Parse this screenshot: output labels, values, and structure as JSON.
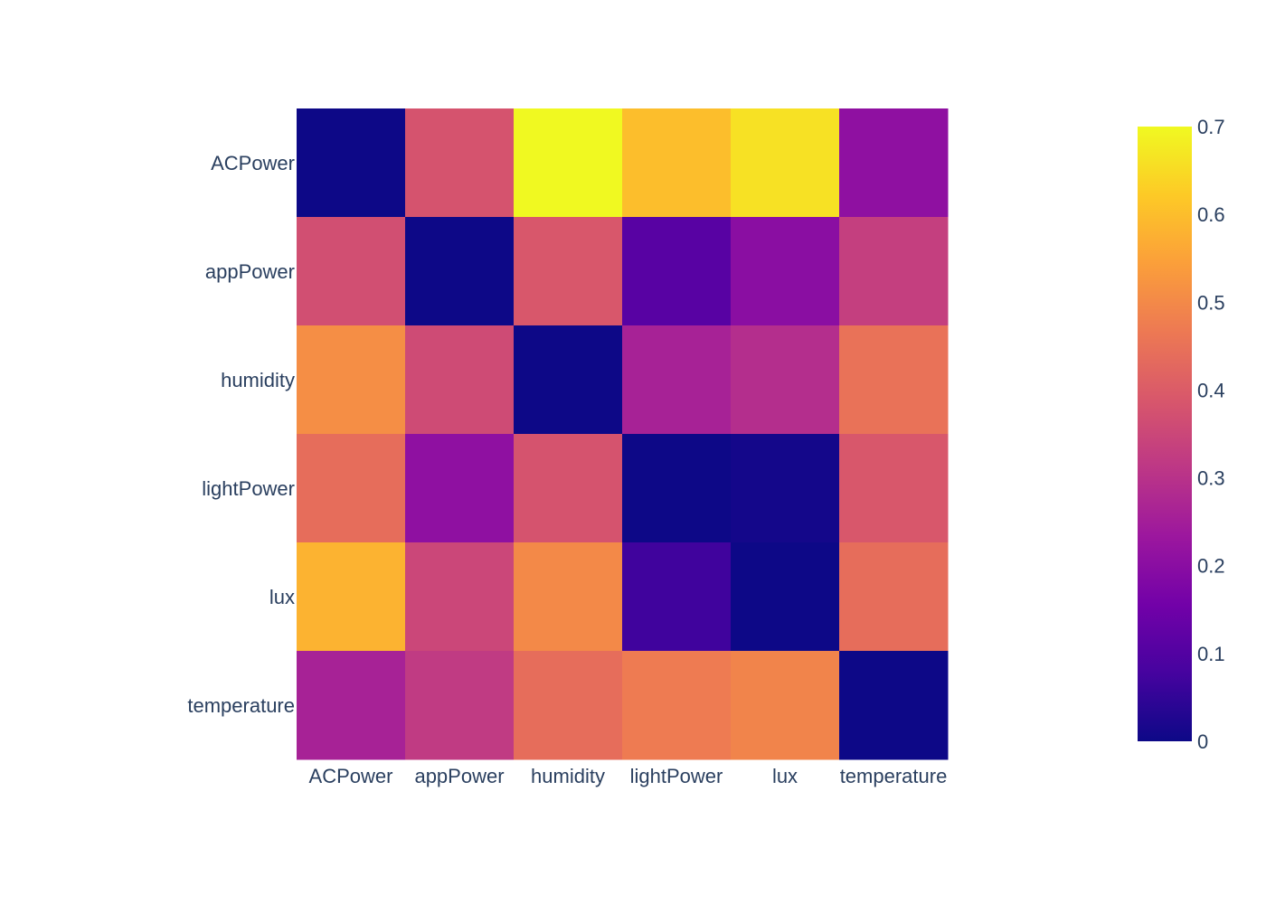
{
  "chart_data": {
    "type": "heatmap",
    "title": "",
    "xlabel": "",
    "ylabel": "",
    "x": [
      "ACPower",
      "appPower",
      "humidity",
      "lightPower",
      "lux",
      "temperature"
    ],
    "y": [
      "ACPower",
      "appPower",
      "humidity",
      "lightPower",
      "lux",
      "temperature"
    ],
    "z": [
      [
        0.0,
        0.38,
        0.7,
        0.6,
        0.66,
        0.21
      ],
      [
        0.37,
        0.0,
        0.39,
        0.11,
        0.2,
        0.33
      ],
      [
        0.51,
        0.36,
        0.0,
        0.26,
        0.29,
        0.45
      ],
      [
        0.44,
        0.21,
        0.38,
        0.0,
        0.01,
        0.39
      ],
      [
        0.58,
        0.35,
        0.5,
        0.07,
        0.0,
        0.44
      ],
      [
        0.26,
        0.32,
        0.44,
        0.47,
        0.49,
        0.0
      ]
    ],
    "zrange": [
      0,
      0.7
    ],
    "colorscale": "plasma",
    "colorbar": {
      "position": "right",
      "tickvals": [
        0,
        0.1,
        0.2,
        0.3,
        0.4,
        0.5,
        0.6,
        0.7
      ],
      "ticktext": [
        "0",
        "0.1",
        "0.2",
        "0.3",
        "0.4",
        "0.5",
        "0.6",
        "0.7"
      ]
    },
    "grid": false
  },
  "colors": {
    "plasma": [
      "#0d0887",
      "#46039f",
      "#7201a8",
      "#9c179e",
      "#bd3786",
      "#d8576b",
      "#ed7953",
      "#fb9f3a",
      "#fdca26",
      "#f0f921"
    ],
    "text": "#2a3f5f",
    "background": "#ffffff"
  }
}
